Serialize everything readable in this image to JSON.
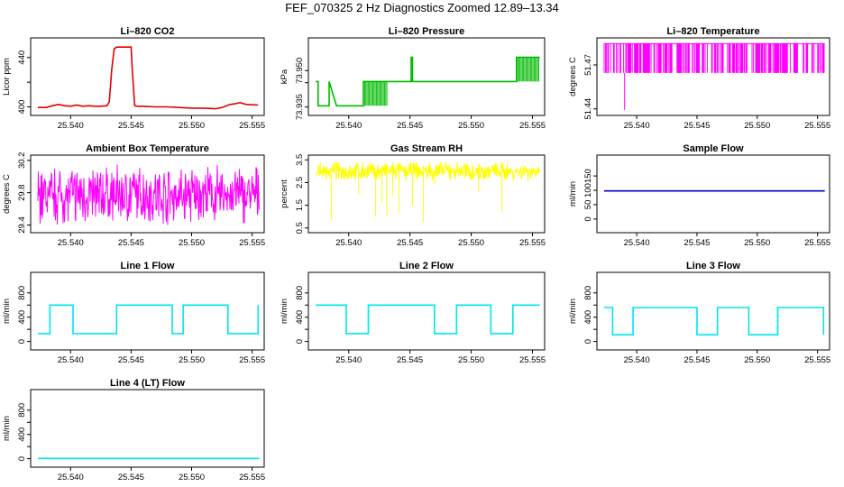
{
  "title": "FEF_070325  2 Hz Diagnostics Zoomed 12.89–13.34",
  "chart_data": [
    {
      "type": "line",
      "title": "Li–820 CO2",
      "xlabel": "",
      "ylabel": "Licor ppm",
      "color": "#e00000",
      "xlim": [
        25.537,
        25.5557
      ],
      "ylim": [
        396,
        453
      ],
      "xticks": [
        25.54,
        25.545,
        25.55,
        25.555
      ],
      "xticklabels": [
        "25.540",
        "25.545",
        "25.550",
        "25.555"
      ],
      "yticks": [
        400,
        420,
        440
      ],
      "yticklabels": [
        "400",
        "",
        "440"
      ],
      "series": [
        {
          "x": [
            25.5373,
            25.538,
            25.5385,
            25.539,
            25.5395,
            25.54,
            25.5405,
            25.541,
            25.5415,
            25.542,
            25.5425,
            25.543,
            25.5432,
            25.5434,
            25.5436,
            25.5438,
            25.5445,
            25.545,
            25.5451,
            25.5453,
            25.5455,
            25.546,
            25.547,
            25.548,
            25.549,
            25.55,
            25.551,
            25.552,
            25.5525,
            25.5532,
            25.5536,
            25.554,
            25.5545,
            25.5555
          ],
          "y": [
            399.5,
            399.5,
            401,
            402,
            401,
            400.5,
            401.5,
            400.5,
            401,
            400.5,
            400.5,
            401,
            404,
            430,
            447,
            448.5,
            448.5,
            448.5,
            430,
            401,
            400.5,
            400.5,
            400,
            400,
            399.5,
            399,
            399,
            398.5,
            399.5,
            402,
            402.5,
            403.5,
            402,
            401.5
          ]
        }
      ]
    },
    {
      "type": "line",
      "title": "Li–820 Pressure",
      "xlabel": "",
      "ylabel": "kPa",
      "color": "#00bb00",
      "xlim": [
        25.537,
        25.5557
      ],
      "ylim": [
        73.933,
        73.962
      ],
      "xticks": [
        25.54,
        25.545,
        25.55,
        25.555
      ],
      "xticklabels": [
        "25.540",
        "25.545",
        "25.550",
        "25.555"
      ],
      "yticks": [
        73.935,
        73.945,
        73.95
      ],
      "yticklabels": [
        "73.935",
        "",
        "73.950"
      ],
      "series": [
        {
          "name": "base",
          "x": [
            25.5373,
            25.5375,
            25.5375,
            25.5378,
            25.5384,
            25.5384,
            25.539,
            25.5412,
            25.5412,
            25.5413,
            25.5413,
            25.5451,
            25.5451,
            25.5452,
            25.5452,
            25.5537,
            25.5537,
            25.5556
          ],
          "y": [
            73.9455,
            73.9455,
            73.9355,
            73.9355,
            73.9355,
            73.9455,
            73.9355,
            73.9355,
            73.9455,
            73.9455,
            73.9455,
            73.9455,
            73.9555,
            73.9555,
            73.9455,
            73.9455,
            73.9555,
            73.9555
          ]
        },
        {
          "name": "dense",
          "x_start": [
            25.5413,
            25.5537
          ],
          "x_end": [
            25.5432,
            25.5556
          ],
          "levels": [
            [
              73.9355,
              73.9455
            ],
            [
              73.9455,
              73.9555
            ]
          ]
        }
      ]
    },
    {
      "type": "line",
      "title": "Li–820 Temperature",
      "xlabel": "",
      "ylabel": "degrees C",
      "color": "#ff00ff",
      "xlim": [
        25.537,
        25.5557
      ],
      "ylim": [
        51.438,
        51.486
      ],
      "xticks": [
        25.54,
        25.545,
        25.55,
        25.555
      ],
      "xticklabels": [
        "25.540",
        "25.545",
        "25.550",
        "25.555"
      ],
      "yticks": [
        51.44,
        51.47
      ],
      "yticklabels": [
        "51.44",
        "51.47"
      ],
      "series": [
        {
          "name": "telegraph",
          "x_start": 25.5373,
          "x_end": 25.5556,
          "levels": [
            51.4645,
            51.4845
          ],
          "dip": [
            25.539,
            51.4393
          ]
        }
      ]
    },
    {
      "type": "line",
      "title": "Ambient Box Temperature",
      "xlabel": "",
      "ylabel": "degrees C",
      "color": "#ff00ff",
      "xlim": [
        25.537,
        25.5557
      ],
      "ylim": [
        29.35,
        30.22
      ],
      "xticks": [
        25.54,
        25.545,
        25.55,
        25.555
      ],
      "xticklabels": [
        "25.540",
        "25.545",
        "25.550",
        "25.555"
      ],
      "yticks": [
        29.4,
        29.8,
        30.2
      ],
      "yticklabels": [
        "29.4",
        "29.8",
        "30.2"
      ],
      "series": [
        {
          "name": "noise",
          "x_start": 25.5373,
          "x_end": 25.5556,
          "mean": 29.77,
          "range": [
            29.4,
            30.17
          ]
        }
      ]
    },
    {
      "type": "line",
      "title": "Gas Stream RH",
      "xlabel": "",
      "ylabel": "percent",
      "color": "#ffff00",
      "xlim": [
        25.537,
        25.5557
      ],
      "ylim": [
        0.45,
        3.55
      ],
      "xticks": [
        25.54,
        25.545,
        25.55,
        25.555
      ],
      "xticklabels": [
        "25.540",
        "25.545",
        "25.550",
        "25.555"
      ],
      "yticks": [
        0.5,
        1.5,
        2.5,
        3.5
      ],
      "yticklabels": [
        "0.5",
        "1.5",
        "2.5",
        "3.5"
      ],
      "series": [
        {
          "name": "noise",
          "x_start": 25.5373,
          "x_end": 25.5556,
          "mean": 3.0,
          "range": [
            2.5,
            3.4
          ],
          "dips": [
            [
              25.5386,
              0.85
            ],
            [
              25.5408,
              2.0
            ],
            [
              25.5422,
              1.0
            ],
            [
              25.5427,
              1.6
            ],
            [
              25.5431,
              1.05
            ],
            [
              25.5436,
              1.9
            ],
            [
              25.5441,
              1.2
            ],
            [
              25.5452,
              1.5
            ],
            [
              25.5461,
              0.75
            ],
            [
              25.547,
              2.4
            ],
            [
              25.5506,
              2.1
            ],
            [
              25.5525,
              1.25
            ]
          ]
        }
      ]
    },
    {
      "type": "line",
      "title": "Sample Flow",
      "xlabel": "",
      "ylabel": "ml/min",
      "color": "#0000cc",
      "xlim": [
        25.537,
        25.5557
      ],
      "ylim": [
        -35,
        210
      ],
      "xticks": [
        25.54,
        25.545,
        25.55,
        25.555
      ],
      "xticklabels": [
        "25.540",
        "25.545",
        "25.550",
        "25.555"
      ],
      "yticks": [
        0,
        50,
        100,
        150
      ],
      "yticklabels": [
        "0",
        "50",
        "100",
        "150"
      ],
      "series": [
        {
          "x": [
            25.5373,
            25.5556
          ],
          "y": [
            98,
            98
          ]
        }
      ]
    },
    {
      "type": "line",
      "title": "Line 1 Flow",
      "xlabel": "",
      "ylabel": "ml/min",
      "color": "#00e5ee",
      "xlim": [
        25.537,
        25.5557
      ],
      "ylim": [
        -80,
        1080
      ],
      "xticks": [
        25.54,
        25.545,
        25.55,
        25.555
      ],
      "xticklabels": [
        "25.540",
        "25.545",
        "25.550",
        "25.555"
      ],
      "yticks": [
        0,
        200,
        400,
        600,
        800
      ],
      "yticklabels": [
        "0",
        "",
        "400",
        "",
        "800"
      ],
      "series": [
        {
          "x": [
            25.5373,
            25.5383,
            25.5383,
            25.5402,
            25.5402,
            25.5438,
            25.5438,
            25.5447,
            25.5447,
            25.5484,
            25.5484,
            25.5493,
            25.5493,
            25.553,
            25.553,
            25.5549,
            25.5549,
            25.5555,
            25.5555
          ],
          "y": [
            130,
            130,
            600,
            600,
            130,
            130,
            600,
            600,
            600,
            600,
            130,
            130,
            600,
            600,
            130,
            130,
            130,
            130,
            600
          ]
        }
      ]
    },
    {
      "type": "line",
      "title": "Line 2 Flow",
      "xlabel": "",
      "ylabel": "ml/min",
      "color": "#00e5ee",
      "xlim": [
        25.537,
        25.5557
      ],
      "ylim": [
        -80,
        1080
      ],
      "xticks": [
        25.54,
        25.545,
        25.55,
        25.555
      ],
      "xticklabels": [
        "25.540",
        "25.545",
        "25.550",
        "25.555"
      ],
      "yticks": [
        0,
        200,
        400,
        600,
        800
      ],
      "yticklabels": [
        "0",
        "",
        "400",
        "",
        "800"
      ],
      "series": [
        {
          "x": [
            25.5373,
            25.5398,
            25.5398,
            25.5416,
            25.5416,
            25.547,
            25.547,
            25.5488,
            25.5488,
            25.5516,
            25.5516,
            25.5534,
            25.5534,
            25.5556
          ],
          "y": [
            600,
            600,
            130,
            130,
            600,
            600,
            130,
            130,
            600,
            600,
            130,
            130,
            600,
            600
          ]
        }
      ]
    },
    {
      "type": "line",
      "title": "Line 3 Flow",
      "xlabel": "",
      "ylabel": "ml/min",
      "color": "#00e5ee",
      "xlim": [
        25.537,
        25.5557
      ],
      "ylim": [
        -80,
        1080
      ],
      "xticks": [
        25.54,
        25.545,
        25.55,
        25.555
      ],
      "xticklabels": [
        "25.540",
        "25.545",
        "25.550",
        "25.555"
      ],
      "yticks": [
        0,
        200,
        400,
        600,
        800
      ],
      "yticklabels": [
        "0",
        "",
        "400",
        "",
        "800"
      ],
      "series": [
        {
          "x": [
            25.5373,
            25.538,
            25.538,
            25.5397,
            25.5397,
            25.545,
            25.545,
            25.5467,
            25.5467,
            25.5493,
            25.5493,
            25.5517,
            25.5517,
            25.5555,
            25.5555
          ],
          "y": [
            560,
            560,
            110,
            110,
            560,
            560,
            110,
            110,
            560,
            560,
            110,
            110,
            560,
            560,
            110
          ]
        }
      ]
    },
    {
      "type": "line",
      "title": "Line 4 (LT) Flow",
      "xlabel": "",
      "ylabel": "ml/min",
      "color": "#00e5ee",
      "xlim": [
        25.537,
        25.5557
      ],
      "ylim": [
        -80,
        1080
      ],
      "xticks": [
        25.54,
        25.545,
        25.55,
        25.555
      ],
      "xticklabels": [
        "25.540",
        "25.545",
        "25.550",
        "25.555"
      ],
      "yticks": [
        0,
        200,
        400,
        600,
        800
      ],
      "yticklabels": [
        "0",
        "",
        "400",
        "",
        "800"
      ],
      "series": [
        {
          "x": [
            25.5373,
            25.5556
          ],
          "y": [
            5,
            5
          ]
        }
      ]
    }
  ]
}
